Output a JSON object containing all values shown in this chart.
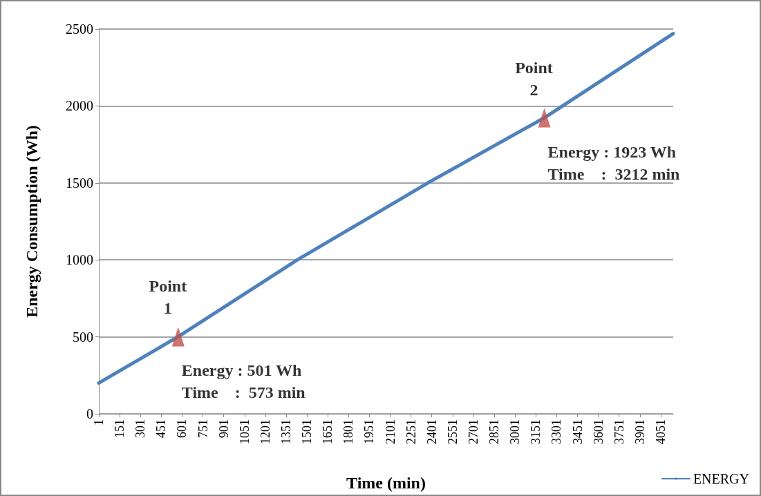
{
  "chart_data": {
    "type": "line",
    "xlabel": "Time (min)",
    "ylabel": "Energy Consumption (Wh)",
    "xlim": [
      1,
      4141
    ],
    "xticks": [
      1,
      151,
      301,
      451,
      601,
      751,
      901,
      1051,
      1201,
      1351,
      1501,
      1651,
      1801,
      1951,
      2101,
      2251,
      2401,
      2551,
      2701,
      2851,
      3001,
      3151,
      3301,
      3451,
      3601,
      3751,
      3901,
      4051
    ],
    "ylim": [
      0,
      2500
    ],
    "yticks": [
      0,
      500,
      1000,
      1500,
      2000,
      2500
    ],
    "grid": "y",
    "legend": "bottom right",
    "marker": "none",
    "line_style": "solid",
    "series": [
      {
        "name": "ENERGY",
        "color": "#4f81bd",
        "x": [
          1,
          573,
          1432,
          2372,
          3212,
          4141
        ],
        "values": [
          200,
          501,
          1000,
          1500,
          1923,
          2470
        ]
      },
      {
        "type": "scatter",
        "marker": "triangle",
        "color": "#c0504d",
        "x": [
          573,
          3212
        ],
        "values": [
          501,
          1923
        ]
      }
    ],
    "annotations": [
      "Point\n1",
      "Energy : 501 Wh\nTime    :  573 min",
      "Point\n2",
      "Energy : 1923 Wh\nTime    :  3212 min"
    ]
  }
}
